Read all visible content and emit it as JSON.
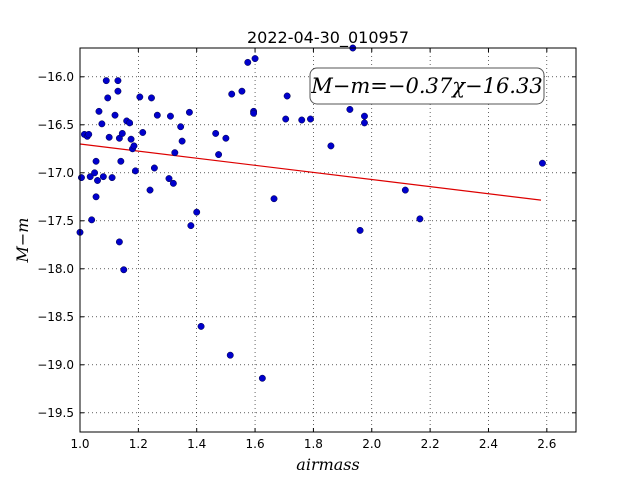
{
  "chart_data": {
    "type": "scatter",
    "title": "2022-04-30_010957",
    "xlabel": "airmass",
    "ylabel": "M−m",
    "xlim": [
      1.0,
      2.7
    ],
    "ylim": [
      -19.7,
      -15.7
    ],
    "y_inverted": true,
    "grid": true,
    "x_ticks": [
      "1.0",
      "1.2",
      "1.4",
      "1.6",
      "1.8",
      "2.0",
      "2.2",
      "2.4",
      "2.6"
    ],
    "y_ticks": [
      "−16.0",
      "−16.5",
      "−17.0",
      "−17.5",
      "−18.0",
      "−18.5",
      "−19.0",
      "−19.5"
    ],
    "annotation": "M−m=−0.37χ−16.33",
    "marker_color": "#0000cc",
    "fit_color": "#dd0000",
    "fit": {
      "slope": -0.37,
      "intercept": -16.33,
      "x_range": [
        1.0,
        2.58
      ]
    },
    "points": [
      [
        1.0,
        -17.62
      ],
      [
        1.005,
        -17.05
      ],
      [
        1.015,
        -16.6
      ],
      [
        1.025,
        -16.62
      ],
      [
        1.03,
        -16.6
      ],
      [
        1.035,
        -17.04
      ],
      [
        1.04,
        -17.49
      ],
      [
        1.05,
        -17.0
      ],
      [
        1.055,
        -16.88
      ],
      [
        1.055,
        -17.25
      ],
      [
        1.06,
        -17.08
      ],
      [
        1.065,
        -16.36
      ],
      [
        1.075,
        -16.49
      ],
      [
        1.08,
        -17.04
      ],
      [
        1.09,
        -16.04
      ],
      [
        1.095,
        -16.22
      ],
      [
        1.1,
        -16.63
      ],
      [
        1.11,
        -17.05
      ],
      [
        1.12,
        -16.4
      ],
      [
        1.13,
        -16.04
      ],
      [
        1.13,
        -16.15
      ],
      [
        1.135,
        -16.64
      ],
      [
        1.135,
        -17.72
      ],
      [
        1.14,
        -16.88
      ],
      [
        1.145,
        -16.59
      ],
      [
        1.15,
        -18.01
      ],
      [
        1.16,
        -16.46
      ],
      [
        1.17,
        -16.48
      ],
      [
        1.175,
        -16.65
      ],
      [
        1.18,
        -16.75
      ],
      [
        1.185,
        -16.72
      ],
      [
        1.19,
        -16.98
      ],
      [
        1.205,
        -16.21
      ],
      [
        1.215,
        -16.58
      ],
      [
        1.24,
        -17.18
      ],
      [
        1.245,
        -16.22
      ],
      [
        1.255,
        -16.95
      ],
      [
        1.265,
        -16.4
      ],
      [
        1.305,
        -17.06
      ],
      [
        1.31,
        -16.41
      ],
      [
        1.32,
        -17.11
      ],
      [
        1.325,
        -16.79
      ],
      [
        1.345,
        -16.52
      ],
      [
        1.35,
        -16.67
      ],
      [
        1.375,
        -16.37
      ],
      [
        1.38,
        -17.55
      ],
      [
        1.4,
        -17.41
      ],
      [
        1.415,
        -18.6
      ],
      [
        1.465,
        -16.59
      ],
      [
        1.475,
        -16.81
      ],
      [
        1.5,
        -16.64
      ],
      [
        1.515,
        -18.9
      ],
      [
        1.52,
        -16.18
      ],
      [
        1.555,
        -16.15
      ],
      [
        1.575,
        -15.85
      ],
      [
        1.595,
        -16.36
      ],
      [
        1.595,
        -16.38
      ],
      [
        1.6,
        -15.81
      ],
      [
        1.625,
        -19.14
      ],
      [
        1.665,
        -17.27
      ],
      [
        1.705,
        -16.44
      ],
      [
        1.71,
        -16.2
      ],
      [
        1.76,
        -16.45
      ],
      [
        1.79,
        -16.44
      ],
      [
        1.86,
        -16.72
      ],
      [
        1.925,
        -16.34
      ],
      [
        1.935,
        -15.7
      ],
      [
        1.96,
        -17.6
      ],
      [
        1.975,
        -16.48
      ],
      [
        1.975,
        -16.41
      ],
      [
        2.115,
        -17.18
      ],
      [
        2.165,
        -17.48
      ],
      [
        2.585,
        -16.9
      ]
    ]
  }
}
